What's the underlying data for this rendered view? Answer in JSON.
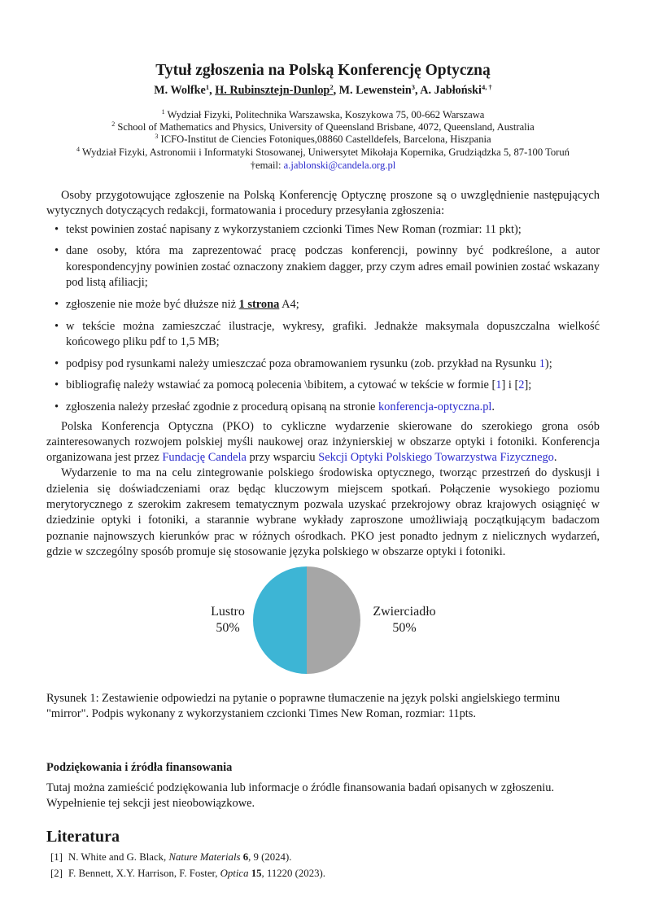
{
  "title": "Tytuł zgłoszenia na Polską Konferencję Optyczną",
  "authors": [
    {
      "name": "M. Wolfke",
      "sup": "1",
      "sep": ", "
    },
    {
      "name": "H. Rubinsztejn-Dunlop",
      "sup": "2",
      "sep": ", ",
      "underlined": true
    },
    {
      "name": "M. Lewenstein",
      "sup": "3",
      "sep": ", "
    },
    {
      "name": "A. Jabłoński",
      "sup": "4, †",
      "sep": ""
    }
  ],
  "affiliations": [
    {
      "sup": "1",
      "text": " Wydział Fizyki, Politechnika Warszawska, Koszykowa 75, 00-662 Warszawa"
    },
    {
      "sup": "2",
      "text": " School of Mathematics and Physics, University of Queensland Brisbane, 4072, Queensland, Australia"
    },
    {
      "sup": "3",
      "text": " ICFO-Institut de Ciencies Fotoniques,08860 Castelldefels, Barcelona, Hiszpania"
    },
    {
      "sup": "4",
      "text": " Wydział Fizyki, Astronomii i Informatyki Stosowanej, Uniwersytet Mikołaja Kopernika, Grudziądzka 5, 87-100 Toruń"
    }
  ],
  "email": {
    "prefix": "†email: ",
    "address": "a.jablonski@candela.org.pl"
  },
  "intro": "Osoby przygotowujące zgłoszenie na Polską Konferencję Optycznę proszone są o uwzględnienie następujących wytycznych dotyczących redakcji, formatowania i procedury przesyłania zgłoszenia:",
  "bullets": [
    {
      "text": "tekst powinien zostać napisany z wykorzystaniem czcionki Times New Roman (rozmiar: 11 pkt);"
    },
    {
      "text": "dane osoby, która ma zaprezentować pracę podczas konferencji, powinny być podkreślone, a autor korespondencyjny powinien zostać oznaczony znakiem dagger, przy czym adres email powinien zostać wskazany pod listą afiliacji;"
    },
    {
      "before": "zgłoszenie nie może być dłuższe niż ",
      "bold": "1 strona",
      "after": " A4;"
    },
    {
      "text": "w tekście można zamieszczać ilustracje, wykresy, grafiki. Jednakże maksymala dopuszczalna wielkość końcowego pliku pdf to 1,5 MB;"
    },
    {
      "before": "podpisy pod rysunkami należy umieszczać poza obramowaniem rysunku (zob. przykład na Rysunku ",
      "link": "1",
      "after": ");"
    },
    {
      "before": "bibliografię należy wstawiać za pomocą polecenia \\bibitem, a cytować w tekście w formie [",
      "link": "1",
      "mid": "] i [",
      "link2": "2",
      "after": "];"
    },
    {
      "before": "zgłoszenia należy przesłać zgodnie z procedurą opisaną na stronie ",
      "link": "konferencja-optyczna.pl",
      "after": "."
    }
  ],
  "para1": {
    "before": "Polska Konferencja Optyczna (PKO) to cykliczne wydarzenie skierowane do szerokiego grona osób zainteresowanych rozwojem polskiej myśli naukowej oraz inżynierskiej w obszarze optyki i fotoniki. Konferencja organizowana jest przez ",
    "link1": "Fundację Candela",
    "mid": " przy wsparciu ",
    "link2": "Sekcji Optyki Polskiego Towarzystwa Fizycznego",
    "after": "."
  },
  "para2": "Wydarzenie to ma na celu zintegrowanie polskiego środowiska optycznego, tworząc przestrzeń do dyskusji i dzielenia się doświadczeniami oraz będąc kluczowym miejscem spotkań. Połączenie wysokiego poziomu merytorycznego z szerokim zakresem tematycznym pozwala uzyskać przekrojowy obraz krajowych osiągnięć w dziedzinie optyki i fotoniki, a starannie wybrane wykłady zaproszone umożliwiają początkującym badaczom poznanie najnowszych kierunków prac w różnych ośrodkach. PKO jest ponadto jednym z nielicznych wydarzeń, gdzie w szczególny sposób promuje się stosowanie języka polskiego w obszarze optyki i fotoniki.",
  "chart_data": {
    "type": "pie",
    "slices": [
      {
        "label": "Lustro",
        "value": 50,
        "value_label": "50%",
        "color": "#3db5d5"
      },
      {
        "label": "Zwierciadło",
        "value": 50,
        "value_label": "50%",
        "color": "#a6a6a6"
      }
    ]
  },
  "caption": "Rysunek 1:  Zestawienie odpowiedzi na pytanie o poprawne tłumaczenie na język polski angielskiego terminu \"mirror\". Podpis wykonany z wykorzystaniem czcionki Times New Roman, rozmiar: 11pts.",
  "ack": {
    "heading": "Podziękowania i źródła finansowania",
    "text": "Tutaj można zamieścić podziękowania lub informacje o źródle finansowania badań opisanych w zgłoszeniu. Wypełnienie tej sekcji jest nieobowiązkowe."
  },
  "references": {
    "heading": "Literatura",
    "items": [
      {
        "num": "[1]",
        "authors": "N. White and G. Black, ",
        "journal": "Nature Materials",
        "vol": " 6",
        "rest": ", 9 (2024)."
      },
      {
        "num": "[2]",
        "authors": "F. Bennett, X.Y. Harrison, F. Foster, ",
        "journal": "Optica",
        "vol": " 15",
        "rest": ", 11220 (2023)."
      }
    ]
  }
}
